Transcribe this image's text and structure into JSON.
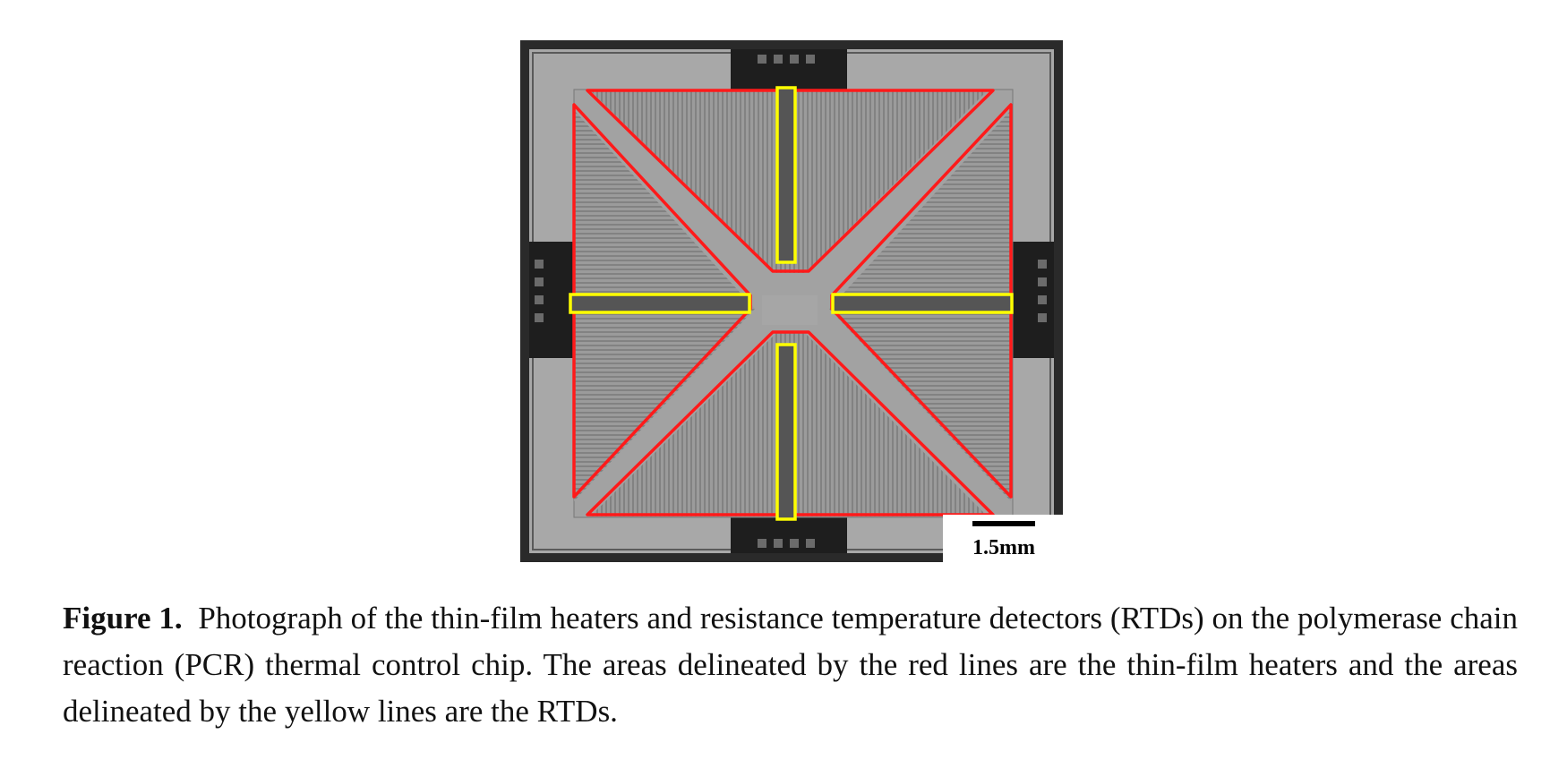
{
  "figure": {
    "scale_bar_label": "1.5mm",
    "colors": {
      "heater_outline": "#ff1a1a",
      "rtd_outline": "#ffff00",
      "chip": "#9a9a9a",
      "pads": "#222222"
    }
  },
  "caption": {
    "label": "Figure 1.",
    "text": "Photograph of the thin-film heaters and resistance temperature detectors (RTDs) on the polymerase chain reaction (PCR) thermal control chip. The areas delineated by the red lines are the thin-film heaters and the areas delineated by the yellow lines are the RTDs."
  }
}
